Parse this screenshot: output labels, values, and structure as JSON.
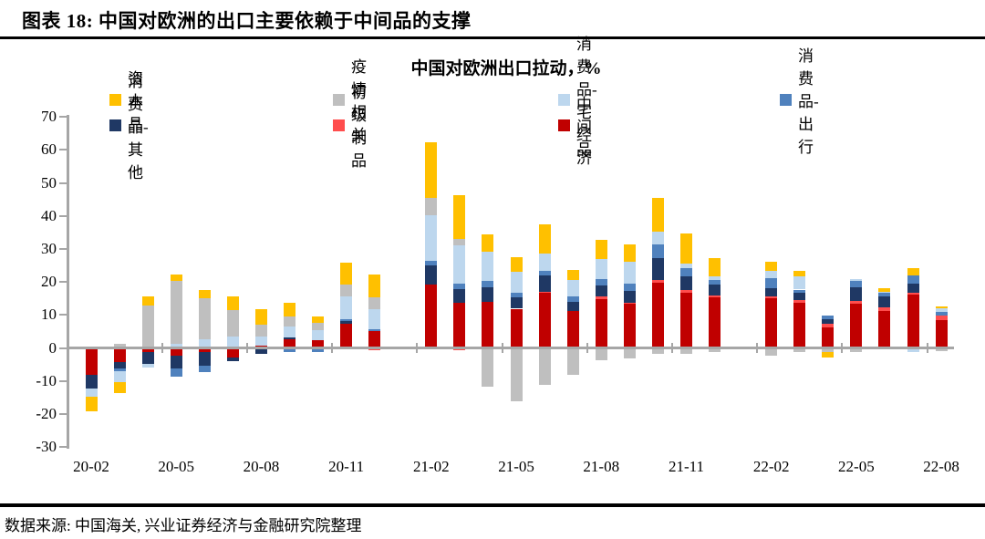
{
  "header": {
    "title": "图表 18: 中国对欧洲的出口主要依赖于中间品的支撑"
  },
  "footer": {
    "source": "数据来源: 中国海关, 兴业证券经济与金融研究院整理"
  },
  "chart_data": {
    "type": "bar",
    "stacked": true,
    "title": "中国对欧洲出口拉动，%",
    "xlabel": "",
    "ylabel": "",
    "ylim": [
      -30,
      70
    ],
    "yticks": [
      70,
      60,
      50,
      40,
      30,
      20,
      10,
      0,
      -10,
      -20,
      -30
    ],
    "xtick_labels": [
      "20-02",
      "20-05",
      "20-08",
      "20-11",
      "21-02",
      "21-05",
      "21-08",
      "21-11",
      "22-02",
      "22-05",
      "22-08"
    ],
    "grid": false,
    "legend_position": "top",
    "axis_color": "#A6A6A6",
    "series_meta": [
      {
        "key": "cap",
        "name": "资本品",
        "color": "#FFC000"
      },
      {
        "key": "pan",
        "name": "疫情相关",
        "color": "#BFBFBF"
      },
      {
        "key": "home",
        "name": "消费品-宅经济",
        "color": "#BDD7EE"
      },
      {
        "key": "travel",
        "name": "消费品-出行",
        "color": "#4F81BD"
      },
      {
        "key": "other",
        "name": "消费品-其他",
        "color": "#1F3864"
      },
      {
        "key": "prim",
        "name": "初级制品",
        "color": "#FF4D4D"
      },
      {
        "key": "mid",
        "name": "中间品",
        "color": "#C00000"
      }
    ],
    "stack_order": [
      "mid",
      "prim",
      "other",
      "travel",
      "home",
      "pan",
      "cap"
    ],
    "bars": [
      {
        "month": "20-02",
        "values": {
          "mid": -8.0,
          "other": -4.0,
          "home": -2.5,
          "cap": -4.5
        }
      },
      {
        "month": "20-03",
        "values": {
          "pan": 1.0,
          "mid": -4.0,
          "other": -2.0,
          "travel": -0.8,
          "home": -3.2,
          "cap": -3.5
        }
      },
      {
        "month": "20-04",
        "values": {
          "pan": 12.6,
          "cap": 2.8,
          "mid": -1.0,
          "other": -3.5,
          "home": -1.2
        }
      },
      {
        "month": "20-05",
        "values": {
          "home": 1.0,
          "pan": 19.0,
          "cap": 1.9,
          "mid": -2.0,
          "other": -4.0,
          "travel": -2.5
        }
      },
      {
        "month": "20-06",
        "values": {
          "home": 2.4,
          "pan": 12.5,
          "cap": 2.3,
          "mid": -1.0,
          "other": -4.0,
          "travel": -2.0
        }
      },
      {
        "month": "20-07",
        "values": {
          "home": 3.2,
          "pan": 8.1,
          "cap": 4.0,
          "mid": -2.5,
          "other": -1.3
        }
      },
      {
        "month": "20-08",
        "values": {
          "mid": 0.5,
          "home": 2.7,
          "pan": 3.5,
          "cap": 4.9,
          "other": -1.5
        }
      },
      {
        "month": "20-09",
        "values": {
          "mid": 2.3,
          "other": 0.6,
          "home": 3.2,
          "pan": 3.2,
          "cap": 4.0,
          "travel": -1.0
        }
      },
      {
        "month": "20-10",
        "values": {
          "mid": 2.1,
          "home": 2.9,
          "pan": 2.3,
          "cap": 1.9,
          "travel": -1.0
        }
      },
      {
        "month": "20-11",
        "values": {
          "mid": 7.1,
          "other": 0.7,
          "travel": 0.6,
          "home": 7.0,
          "pan": 3.4,
          "cap": 6.8
        }
      },
      {
        "month": "20-12",
        "values": {
          "mid": 4.9,
          "travel": 0.5,
          "home": 6.1,
          "pan": 3.5,
          "cap": 6.9,
          "prim": -0.5
        }
      },
      {
        "month": "21-02",
        "values": {
          "mid": 19.0,
          "other": 5.6,
          "travel": 1.6,
          "home": 13.6,
          "pan": 5.3,
          "cap": 17.0
        }
      },
      {
        "month": "21-03",
        "values": {
          "mid": 13.3,
          "other": 4.2,
          "travel": 1.8,
          "home": 11.5,
          "pan": 1.8,
          "cap": 13.4,
          "prim": -0.5
        }
      },
      {
        "month": "21-04",
        "values": {
          "mid": 13.8,
          "other": 4.3,
          "travel": 1.8,
          "home": 9.1,
          "cap": 5.0,
          "pan": -11.5
        }
      },
      {
        "month": "21-05",
        "values": {
          "mid": 11.6,
          "other": 3.5,
          "travel": 1.4,
          "home": 6.2,
          "cap": 4.4,
          "pan": -15.8
        }
      },
      {
        "month": "21-06",
        "values": {
          "mid": 16.3,
          "prim": 0.4,
          "other": 5.1,
          "travel": 1.2,
          "home": 5.2,
          "cap": 8.9,
          "pan": -11.0
        }
      },
      {
        "month": "21-07",
        "values": {
          "mid": 10.8,
          "other": 2.8,
          "travel": 1.8,
          "home": 5.0,
          "cap": 3.0,
          "pan": -7.8
        }
      },
      {
        "month": "21-08",
        "values": {
          "mid": 14.5,
          "prim": 0.9,
          "other": 3.2,
          "travel": 2.1,
          "home": 6.0,
          "cap": 5.7,
          "pan": -3.5
        }
      },
      {
        "month": "21-09",
        "values": {
          "mid": 13.0,
          "prim": 0.5,
          "other": 3.5,
          "travel": 2.1,
          "home": 6.8,
          "cap": 5.2,
          "pan": -2.9
        }
      },
      {
        "month": "21-10",
        "values": {
          "mid": 19.5,
          "prim": 0.7,
          "other": 6.6,
          "travel": 4.2,
          "home": 4.0,
          "cap": 10.3,
          "pan": -1.5
        }
      },
      {
        "month": "21-11",
        "values": {
          "mid": 16.3,
          "prim": 1.0,
          "other": 4.1,
          "travel": 2.4,
          "home": 1.6,
          "cap": 8.9,
          "pan": -1.5
        }
      },
      {
        "month": "21-12",
        "values": {
          "mid": 15.1,
          "prim": 0.6,
          "other": 3.3,
          "travel": 1.3,
          "home": 1.2,
          "cap": 5.5,
          "pan": -1.0
        }
      },
      {
        "month": "22-02",
        "values": {
          "mid": 14.7,
          "prim": 0.7,
          "other": 2.5,
          "travel": 3.0,
          "home": 2.2,
          "cap": 2.8,
          "pan": -2.0
        }
      },
      {
        "month": "22-03",
        "values": {
          "mid": 13.3,
          "prim": 0.9,
          "other": 2.1,
          "travel": 1.1,
          "home": 4.1,
          "cap": 1.6,
          "pan": -1.0
        }
      },
      {
        "month": "22-04",
        "values": {
          "mid": 5.9,
          "prim": 1.2,
          "other": 1.3,
          "travel": 1.2,
          "pan": -1.0,
          "cap": -1.5
        }
      },
      {
        "month": "22-05",
        "values": {
          "mid": 13.0,
          "prim": 0.9,
          "other": 4.2,
          "travel": 1.8,
          "home": 0.7,
          "pan": -1.0
        }
      },
      {
        "month": "22-06",
        "values": {
          "mid": 10.8,
          "prim": 1.3,
          "other": 3.3,
          "travel": 0.9,
          "home": 0.4,
          "cap": 1.2
        }
      },
      {
        "month": "22-07",
        "values": {
          "mid": 15.8,
          "prim": 0.6,
          "other": 2.8,
          "travel": 2.5,
          "cap": 2.1,
          "home": -1.0
        }
      },
      {
        "month": "22-08",
        "values": {
          "mid": 8.2,
          "prim": 1.4,
          "travel": 0.9,
          "home": 1.2,
          "cap": 0.6,
          "pan": -0.8
        }
      }
    ]
  }
}
